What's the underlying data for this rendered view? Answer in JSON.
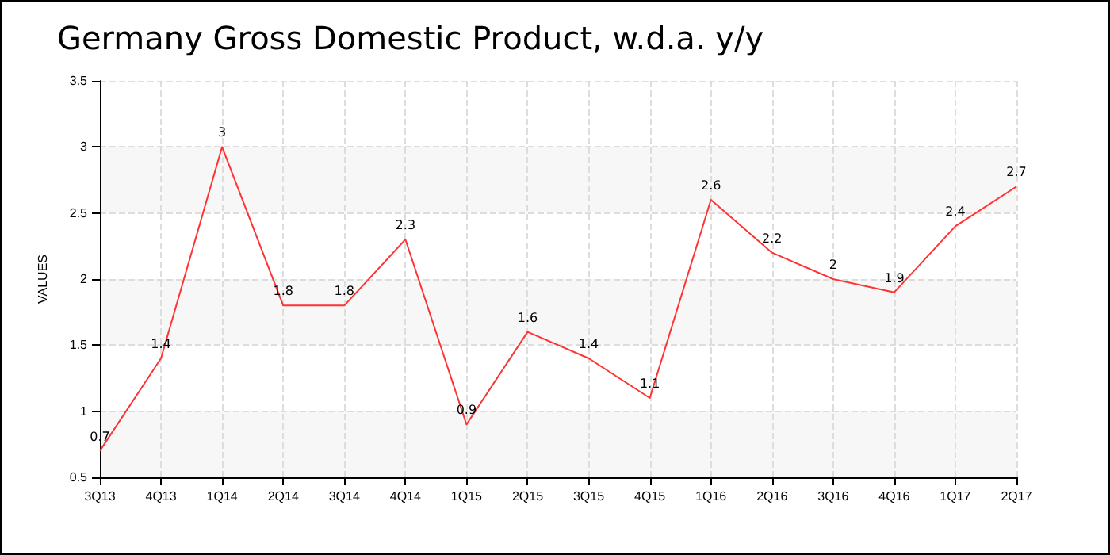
{
  "chart_data": {
    "type": "line",
    "title": "Germany Gross Domestic Product, w.d.a. y/y",
    "ylabel": "VALUES",
    "categories": [
      "3Q13",
      "4Q13",
      "1Q14",
      "2Q14",
      "3Q14",
      "4Q14",
      "1Q15",
      "2Q15",
      "3Q15",
      "4Q15",
      "1Q16",
      "2Q16",
      "3Q16",
      "4Q16",
      "1Q17",
      "2Q17"
    ],
    "series": [
      {
        "color": "#ff3333",
        "values": [
          0.7,
          1.4,
          3,
          1.8,
          1.8,
          2.3,
          0.9,
          1.6,
          1.4,
          1.1,
          2.6,
          2.2,
          2,
          1.9,
          2.4,
          2.7
        ]
      }
    ],
    "ylim": [
      0.5,
      3.5
    ],
    "yticks": [
      0.5,
      1,
      1.5,
      2,
      2.5,
      3,
      3.5
    ],
    "grid": true,
    "data_labels": true,
    "marker": "none"
  }
}
